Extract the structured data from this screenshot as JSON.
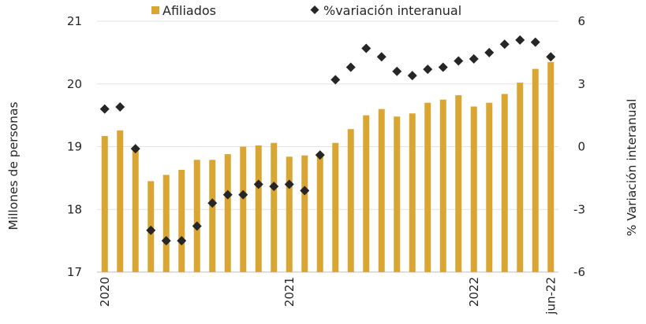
{
  "chart_data": {
    "type": "bar+scatter",
    "legend": [
      {
        "label": "Afiliados",
        "marker": "square",
        "color": "#D9A533"
      },
      {
        "label": "%variación interanual",
        "marker": "diamond",
        "color": "#262626"
      }
    ],
    "legend_position": "top",
    "left_axis": {
      "label": "Millones de personas",
      "range": [
        17,
        21
      ],
      "ticks": [
        17,
        18,
        19,
        20,
        21
      ]
    },
    "right_axis": {
      "label": "% Variación interanual",
      "range": [
        -6,
        6
      ],
      "ticks": [
        -6,
        -3,
        0,
        3,
        6
      ]
    },
    "x_tick_labels": [
      {
        "index": 0,
        "label": "2020"
      },
      {
        "index": 12,
        "label": "2021"
      },
      {
        "index": 24,
        "label": "2022"
      },
      {
        "index": 29,
        "label": "jun-22"
      }
    ],
    "grid": "horizontal",
    "series": [
      {
        "name": "Afiliados",
        "axis": "left",
        "kind": "bar",
        "values": [
          19.17,
          19.26,
          18.95,
          18.45,
          18.55,
          18.63,
          18.79,
          18.79,
          18.88,
          19.0,
          19.02,
          19.06,
          18.84,
          18.86,
          18.89,
          19.06,
          19.28,
          19.5,
          19.6,
          19.48,
          19.53,
          19.7,
          19.75,
          19.82,
          19.64,
          19.7,
          19.84,
          20.02,
          20.24,
          20.35
        ]
      },
      {
        "name": "%variación interanual",
        "axis": "right",
        "kind": "scatter",
        "values": [
          1.8,
          1.9,
          -0.1,
          -4.0,
          -4.5,
          -4.5,
          -3.8,
          -2.7,
          -2.3,
          -2.3,
          -1.8,
          -1.9,
          -1.8,
          -2.1,
          -0.4,
          3.2,
          3.8,
          4.7,
          4.3,
          3.6,
          3.4,
          3.7,
          3.8,
          4.1,
          4.2,
          4.5,
          4.9,
          5.1,
          5.0,
          4.3
        ]
      }
    ]
  }
}
